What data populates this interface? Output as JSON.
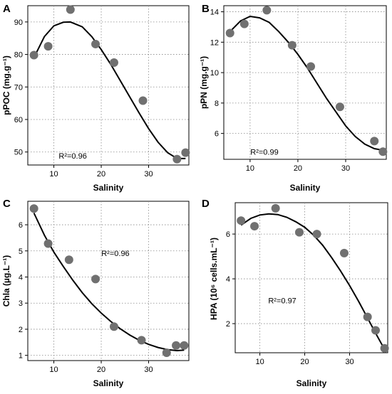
{
  "colors": {
    "points": "#707070",
    "fit_line": "#000000",
    "grid": "#888888"
  },
  "chart_data": [
    {
      "type": "scatter",
      "panel_label": "A",
      "xlabel": "Salinity",
      "ylabel": "pPOC (mg.g⁻¹)",
      "xlim": [
        4.5,
        38.5
      ],
      "ylim": [
        46,
        95
      ],
      "xticks": [
        10,
        20,
        30
      ],
      "yticks": [
        50,
        60,
        70,
        80,
        90
      ],
      "grid": true,
      "points": [
        {
          "x": 5.8,
          "y": 79.8
        },
        {
          "x": 8.8,
          "y": 82.5
        },
        {
          "x": 13.5,
          "y": 93.8
        },
        {
          "x": 18.8,
          "y": 83.2
        },
        {
          "x": 22.7,
          "y": 77.5
        },
        {
          "x": 28.8,
          "y": 65.8
        },
        {
          "x": 36,
          "y": 47.8
        },
        {
          "x": 37.8,
          "y": 49.8
        }
      ],
      "fit_curve": [
        {
          "x": 5.8,
          "y": 79
        },
        {
          "x": 8,
          "y": 85.5
        },
        {
          "x": 10,
          "y": 88.8
        },
        {
          "x": 12,
          "y": 89.9
        },
        {
          "x": 13.5,
          "y": 90
        },
        {
          "x": 16,
          "y": 88.5
        },
        {
          "x": 18,
          "y": 85.5
        },
        {
          "x": 20,
          "y": 81.5
        },
        {
          "x": 22,
          "y": 77
        },
        {
          "x": 24,
          "y": 72
        },
        {
          "x": 26,
          "y": 67
        },
        {
          "x": 28,
          "y": 62
        },
        {
          "x": 30,
          "y": 57.2
        },
        {
          "x": 32,
          "y": 53
        },
        {
          "x": 34,
          "y": 49.8
        },
        {
          "x": 36,
          "y": 48
        },
        {
          "x": 37.8,
          "y": 48
        }
      ],
      "annotation": {
        "text": "R²=0.96",
        "x": 14,
        "y": 48
      }
    },
    {
      "type": "scatter",
      "panel_label": "B",
      "xlabel": "Salinity",
      "ylabel": "pPN (mg.g⁻¹)",
      "xlim": [
        4.5,
        38.5
      ],
      "ylim": [
        4.3,
        14.4
      ],
      "xticks": [
        10,
        20,
        30
      ],
      "yticks": [
        6,
        8,
        10,
        12,
        14
      ],
      "grid": true,
      "points": [
        {
          "x": 5.8,
          "y": 12.6
        },
        {
          "x": 8.8,
          "y": 13.2
        },
        {
          "x": 13.5,
          "y": 14.1
        },
        {
          "x": 18.8,
          "y": 11.8
        },
        {
          "x": 22.7,
          "y": 10.4
        },
        {
          "x": 28.8,
          "y": 7.75
        },
        {
          "x": 36,
          "y": 5.5
        },
        {
          "x": 37.8,
          "y": 4.8
        }
      ],
      "fit_curve": [
        {
          "x": 5.8,
          "y": 12.7
        },
        {
          "x": 8,
          "y": 13.4
        },
        {
          "x": 10,
          "y": 13.7
        },
        {
          "x": 12,
          "y": 13.6
        },
        {
          "x": 14,
          "y": 13.3
        },
        {
          "x": 16,
          "y": 12.7
        },
        {
          "x": 18,
          "y": 12
        },
        {
          "x": 20,
          "y": 11.2
        },
        {
          "x": 22,
          "y": 10.3
        },
        {
          "x": 24,
          "y": 9.3
        },
        {
          "x": 26,
          "y": 8.3
        },
        {
          "x": 28,
          "y": 7.4
        },
        {
          "x": 30,
          "y": 6.5
        },
        {
          "x": 32,
          "y": 5.8
        },
        {
          "x": 34,
          "y": 5.3
        },
        {
          "x": 36,
          "y": 5
        },
        {
          "x": 37.8,
          "y": 4.9
        }
      ],
      "annotation": {
        "text": "R²=0.99",
        "x": 13,
        "y": 4.6
      }
    },
    {
      "type": "scatter",
      "panel_label": "C",
      "xlabel": "Salinity",
      "ylabel": "Chla (µg.L⁻¹)",
      "xlim": [
        4.5,
        38.5
      ],
      "ylim": [
        0.8,
        6.9
      ],
      "xticks": [
        10,
        20,
        30
      ],
      "yticks": [
        1,
        2,
        3,
        4,
        5,
        6
      ],
      "grid": true,
      "points": [
        {
          "x": 5.8,
          "y": 6.62
        },
        {
          "x": 8.8,
          "y": 5.28
        },
        {
          "x": 13.2,
          "y": 4.66
        },
        {
          "x": 18.8,
          "y": 3.92
        },
        {
          "x": 22.7,
          "y": 2.1
        },
        {
          "x": 28.5,
          "y": 1.58
        },
        {
          "x": 33.8,
          "y": 1.1
        },
        {
          "x": 35.8,
          "y": 1.38
        },
        {
          "x": 37.5,
          "y": 1.38
        }
      ],
      "fit_curve": [
        {
          "x": 5.8,
          "y": 6.45
        },
        {
          "x": 8,
          "y": 5.6
        },
        {
          "x": 10,
          "y": 4.95
        },
        {
          "x": 12,
          "y": 4.4
        },
        {
          "x": 14,
          "y": 3.88
        },
        {
          "x": 16,
          "y": 3.4
        },
        {
          "x": 18,
          "y": 2.98
        },
        {
          "x": 20,
          "y": 2.62
        },
        {
          "x": 22,
          "y": 2.3
        },
        {
          "x": 24,
          "y": 2.02
        },
        {
          "x": 26,
          "y": 1.78
        },
        {
          "x": 28,
          "y": 1.58
        },
        {
          "x": 30,
          "y": 1.42
        },
        {
          "x": 32,
          "y": 1.3
        },
        {
          "x": 34,
          "y": 1.22
        },
        {
          "x": 36,
          "y": 1.18
        },
        {
          "x": 37.5,
          "y": 1.2
        }
      ],
      "annotation": {
        "text": "R²=0.96",
        "x": 23,
        "y": 4.8
      }
    },
    {
      "type": "scatter",
      "panel_label": "D",
      "xlabel": "Salinity",
      "ylabel": "HPA (10⁶ cells.mL⁻¹)",
      "xlim": [
        4.5,
        38.5
      ],
      "ylim": [
        0.7,
        7.4
      ],
      "xticks": [
        10,
        20,
        30
      ],
      "yticks": [
        2,
        4,
        6
      ],
      "grid": true,
      "points": [
        {
          "x": 5.8,
          "y": 6.6
        },
        {
          "x": 8.8,
          "y": 6.35
        },
        {
          "x": 13.5,
          "y": 7.15
        },
        {
          "x": 18.8,
          "y": 6.08
        },
        {
          "x": 22.7,
          "y": 6
        },
        {
          "x": 28.8,
          "y": 5.15
        },
        {
          "x": 34,
          "y": 2.3
        },
        {
          "x": 35.8,
          "y": 1.7
        },
        {
          "x": 37.8,
          "y": 0.9
        }
      ],
      "fit_curve": [
        {
          "x": 5.8,
          "y": 6.4
        },
        {
          "x": 8,
          "y": 6.7
        },
        {
          "x": 10,
          "y": 6.85
        },
        {
          "x": 12,
          "y": 6.9
        },
        {
          "x": 14,
          "y": 6.87
        },
        {
          "x": 16,
          "y": 6.75
        },
        {
          "x": 18,
          "y": 6.55
        },
        {
          "x": 20,
          "y": 6.3
        },
        {
          "x": 22,
          "y": 5.95
        },
        {
          "x": 24,
          "y": 5.5
        },
        {
          "x": 26,
          "y": 4.95
        },
        {
          "x": 28,
          "y": 4.35
        },
        {
          "x": 30,
          "y": 3.7
        },
        {
          "x": 32,
          "y": 3
        },
        {
          "x": 34,
          "y": 2.25
        },
        {
          "x": 36,
          "y": 1.5
        },
        {
          "x": 37.8,
          "y": 0.85
        }
      ],
      "annotation": {
        "text": "R²=0.97",
        "x": 15,
        "y": 2.9
      }
    }
  ]
}
